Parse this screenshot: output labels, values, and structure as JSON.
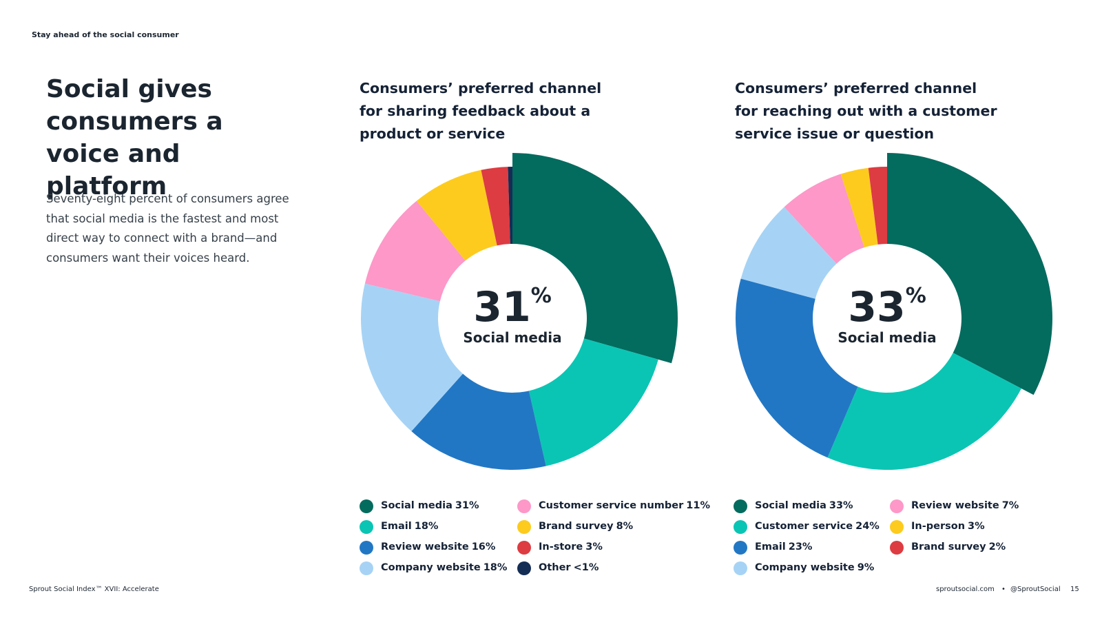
{
  "header": "Stay ahead of the social consumer",
  "headline": "Social gives consumers a voice and platform",
  "body": "Seventy-eight percent of consumers agree that social media is the fastest and most direct way to connect with a brand—and consumers want their voices heard.",
  "footer": {
    "left": "Sprout Social Index™ XVII: Accelerate",
    "site": "sproutsocial.com",
    "handle": "@SproutSocial",
    "page": "15"
  },
  "chart_data": [
    {
      "type": "donut",
      "title": "Consumers’ preferred channel for sharing feedback about a product or service",
      "categories": [
        "Social media",
        "Email",
        "Review website",
        "Company website",
        "Customer service number",
        "Brand survey",
        "In-store",
        "Other"
      ],
      "values": [
        31,
        18,
        16,
        18,
        11,
        8,
        3,
        0.5
      ],
      "value_labels": [
        "31%",
        "18%",
        "16%",
        "18%",
        "11%",
        "8%",
        "3%",
        "<1%"
      ],
      "colors": [
        "#046b5f",
        "#0bc5b4",
        "#2277c4",
        "#a6d3f5",
        "#fd98c8",
        "#fdcb1e",
        "#dc3c42",
        "#142d55"
      ],
      "center": {
        "number": "31",
        "unit": "%",
        "label": "Social media"
      }
    },
    {
      "type": "donut",
      "title": "Consumers’ preferred channel for reaching out with a customer service issue or question",
      "categories": [
        "Social media",
        "Customer service",
        "Email",
        "Company website",
        "Review website",
        "In-person",
        "Brand survey"
      ],
      "values": [
        33,
        24,
        23,
        9,
        7,
        3,
        2
      ],
      "value_labels": [
        "33%",
        "24%",
        "23%",
        "9%",
        "7%",
        "3%",
        "2%"
      ],
      "colors": [
        "#046b5f",
        "#0bc5b4",
        "#2277c4",
        "#a6d3f5",
        "#fd98c8",
        "#fdcb1e",
        "#dc3c42"
      ],
      "center": {
        "number": "33",
        "unit": "%",
        "label": "Social media"
      }
    }
  ]
}
